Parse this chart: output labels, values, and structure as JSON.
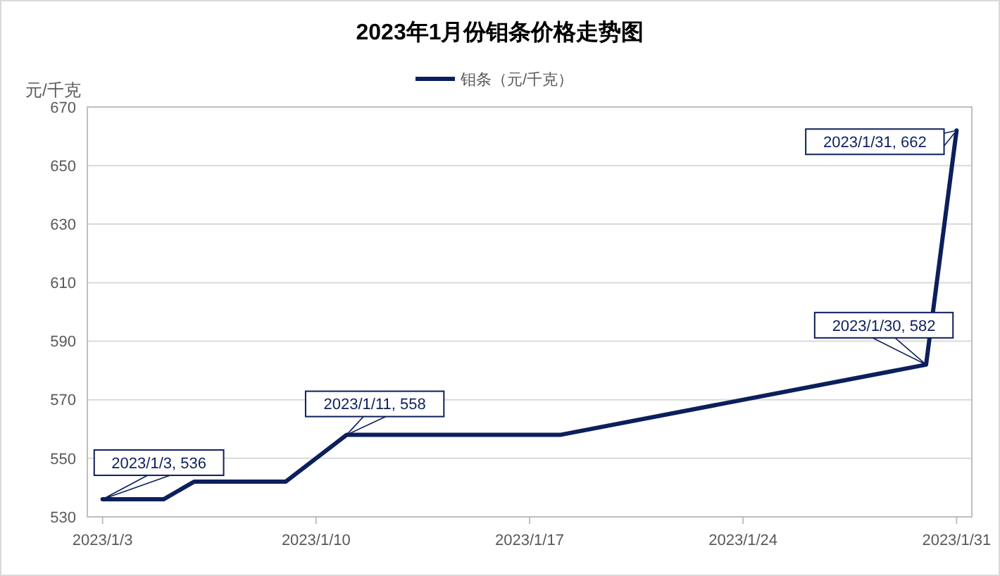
{
  "chart_data": {
    "type": "line",
    "title": "2023年1月份钼条价格走势图",
    "ylabel": "元/千克",
    "x": [
      "2023-01-03",
      "2023-01-05",
      "2023-01-06",
      "2023-01-09",
      "2023-01-11",
      "2023-01-18",
      "2023-01-30",
      "2023-01-31"
    ],
    "series": [
      {
        "name": "钼条（元/千克）",
        "color": "#0c1f5c",
        "values": [
          536,
          536,
          542,
          542,
          558,
          558,
          582,
          662
        ]
      }
    ],
    "xlim": [
      "2023-01-02T12:00",
      "2023-01-31T12:00"
    ],
    "xticks": [
      {
        "value": "2023-01-03",
        "label": "2023/1/3"
      },
      {
        "value": "2023-01-10",
        "label": "2023/1/10"
      },
      {
        "value": "2023-01-17",
        "label": "2023/1/17"
      },
      {
        "value": "2023-01-24",
        "label": "2023/1/24"
      },
      {
        "value": "2023-01-31",
        "label": "2023/1/31"
      }
    ],
    "ylim": [
      530,
      670
    ],
    "yticks": [
      530,
      550,
      570,
      590,
      610,
      630,
      650,
      670
    ],
    "grid": "y",
    "legend": "top",
    "marker": "none",
    "line_style": "solid",
    "annotations": [
      {
        "text": "2023/1/3, 536",
        "x": "2023-01-03",
        "y": 536
      },
      {
        "text": "2023/1/11, 558",
        "x": "2023-01-11",
        "y": 558
      },
      {
        "text": "2023/1/30, 582",
        "x": "2023-01-30",
        "y": 582
      },
      {
        "text": "2023/1/31, 662",
        "x": "2023-01-31",
        "y": 662
      }
    ]
  }
}
